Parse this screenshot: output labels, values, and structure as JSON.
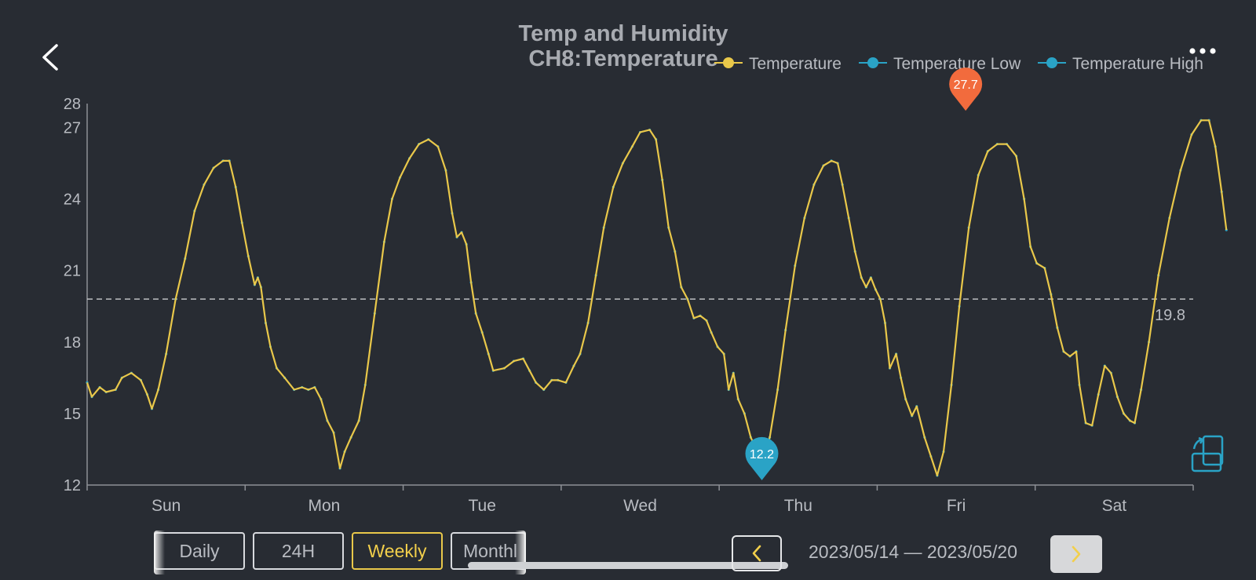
{
  "header": {
    "back_icon": "chevron-left-icon",
    "more_icon": "more-horizontal-icon",
    "title": "Temp and Humidity",
    "subtitle": "CH8:Temperature"
  },
  "legend": {
    "placement": "top-right",
    "items": [
      {
        "label": "Temperature",
        "color": "#e9c84a"
      },
      {
        "label": "Temperature Low",
        "color": "#2aa3c6"
      },
      {
        "label": "Temperature High",
        "color": "#2aa3c6"
      }
    ]
  },
  "chart_data": {
    "type": "line",
    "title": "Temp and Humidity",
    "subtitle": "CH8:Temperature",
    "xlabel": "",
    "ylabel": "",
    "ylim": [
      12,
      28
    ],
    "yticks": [
      12,
      15,
      18,
      21,
      24,
      27,
      28
    ],
    "categories": [
      "Sun",
      "Mon",
      "Tue",
      "Wed",
      "Thu",
      "Fri",
      "Sat"
    ],
    "xlim_days": [
      0,
      7
    ],
    "grid": false,
    "average_line": {
      "value": 19.8,
      "label": "19.8"
    },
    "max_marker": {
      "day": 5.56,
      "value": 27.7,
      "label": "27.7",
      "color": "#f26b3d"
    },
    "min_marker": {
      "day": 4.27,
      "value": 12.2,
      "label": "12.2",
      "color": "#2aa3c6"
    },
    "series": [
      {
        "name": "Temperature",
        "color": "#e9c84a",
        "points": [
          [
            0.0,
            16.3
          ],
          [
            0.03,
            15.7
          ],
          [
            0.08,
            16.1
          ],
          [
            0.12,
            15.9
          ],
          [
            0.18,
            16.0
          ],
          [
            0.22,
            16.5
          ],
          [
            0.28,
            16.7
          ],
          [
            0.34,
            16.4
          ],
          [
            0.38,
            15.8
          ],
          [
            0.41,
            15.2
          ],
          [
            0.45,
            16.0
          ],
          [
            0.5,
            17.5
          ],
          [
            0.56,
            19.8
          ],
          [
            0.62,
            21.5
          ],
          [
            0.68,
            23.5
          ],
          [
            0.74,
            24.6
          ],
          [
            0.8,
            25.3
          ],
          [
            0.86,
            25.6
          ],
          [
            0.9,
            25.6
          ],
          [
            0.94,
            24.5
          ],
          [
            0.98,
            23.0
          ],
          [
            1.02,
            21.6
          ],
          [
            1.06,
            20.4
          ],
          [
            1.08,
            20.7
          ],
          [
            1.1,
            20.3
          ],
          [
            1.13,
            18.8
          ],
          [
            1.16,
            17.8
          ],
          [
            1.2,
            16.9
          ],
          [
            1.25,
            16.5
          ],
          [
            1.31,
            16.0
          ],
          [
            1.36,
            16.1
          ],
          [
            1.4,
            16.0
          ],
          [
            1.44,
            16.1
          ],
          [
            1.48,
            15.6
          ],
          [
            1.52,
            14.7
          ],
          [
            1.56,
            14.2
          ],
          [
            1.6,
            12.7
          ],
          [
            1.63,
            13.4
          ],
          [
            1.67,
            14.0
          ],
          [
            1.72,
            14.7
          ],
          [
            1.76,
            16.2
          ],
          [
            1.82,
            19.2
          ],
          [
            1.88,
            22.2
          ],
          [
            1.93,
            24.0
          ],
          [
            1.98,
            24.9
          ],
          [
            2.04,
            25.7
          ],
          [
            2.1,
            26.3
          ],
          [
            2.16,
            26.5
          ],
          [
            2.22,
            26.2
          ],
          [
            2.27,
            25.2
          ],
          [
            2.31,
            23.4
          ],
          [
            2.34,
            22.4
          ],
          [
            2.37,
            22.6
          ],
          [
            2.4,
            22.1
          ],
          [
            2.43,
            20.5
          ],
          [
            2.46,
            19.2
          ],
          [
            2.5,
            18.4
          ],
          [
            2.54,
            17.5
          ],
          [
            2.57,
            16.8
          ],
          [
            2.64,
            16.9
          ],
          [
            2.7,
            17.2
          ],
          [
            2.76,
            17.3
          ],
          [
            2.8,
            16.8
          ],
          [
            2.84,
            16.3
          ],
          [
            2.89,
            16.0
          ],
          [
            2.94,
            16.4
          ],
          [
            2.98,
            16.4
          ],
          [
            3.03,
            16.3
          ],
          [
            3.08,
            17.0
          ],
          [
            3.12,
            17.5
          ],
          [
            3.17,
            18.8
          ],
          [
            3.22,
            20.8
          ],
          [
            3.27,
            22.8
          ],
          [
            3.33,
            24.5
          ],
          [
            3.39,
            25.5
          ],
          [
            3.45,
            26.2
          ],
          [
            3.5,
            26.8
          ],
          [
            3.56,
            26.9
          ],
          [
            3.6,
            26.5
          ],
          [
            3.64,
            24.8
          ],
          [
            3.68,
            22.8
          ],
          [
            3.72,
            21.8
          ],
          [
            3.76,
            20.3
          ],
          [
            3.8,
            19.8
          ],
          [
            3.84,
            19.0
          ],
          [
            3.88,
            19.1
          ],
          [
            3.92,
            18.9
          ],
          [
            3.95,
            18.4
          ],
          [
            3.99,
            17.8
          ],
          [
            4.03,
            17.5
          ],
          [
            4.06,
            16.0
          ],
          [
            4.09,
            16.7
          ],
          [
            4.12,
            15.6
          ],
          [
            4.16,
            15.0
          ],
          [
            4.2,
            14.0
          ],
          [
            4.25,
            13.3
          ],
          [
            4.28,
            13.1
          ],
          [
            4.32,
            14.0
          ],
          [
            4.37,
            16.0
          ],
          [
            4.42,
            18.5
          ],
          [
            4.48,
            21.2
          ],
          [
            4.54,
            23.2
          ],
          [
            4.6,
            24.6
          ],
          [
            4.66,
            25.4
          ],
          [
            4.71,
            25.6
          ],
          [
            4.75,
            25.5
          ],
          [
            4.78,
            24.6
          ],
          [
            4.82,
            23.2
          ],
          [
            4.86,
            21.8
          ],
          [
            4.9,
            20.7
          ],
          [
            4.93,
            20.3
          ],
          [
            4.96,
            20.7
          ],
          [
            4.99,
            20.2
          ],
          [
            5.02,
            19.8
          ],
          [
            5.05,
            18.8
          ],
          [
            5.08,
            16.9
          ],
          [
            5.12,
            17.5
          ],
          [
            5.15,
            16.5
          ],
          [
            5.18,
            15.6
          ],
          [
            5.22,
            14.9
          ],
          [
            5.25,
            15.3
          ],
          [
            5.3,
            14.0
          ],
          [
            5.34,
            13.2
          ],
          [
            5.38,
            12.4
          ],
          [
            5.42,
            13.4
          ],
          [
            5.47,
            16.2
          ],
          [
            5.52,
            19.5
          ],
          [
            5.58,
            22.8
          ],
          [
            5.64,
            25.0
          ],
          [
            5.7,
            26.0
          ],
          [
            5.76,
            26.3
          ],
          [
            5.82,
            26.3
          ],
          [
            5.88,
            25.8
          ],
          [
            5.93,
            24.0
          ],
          [
            5.97,
            22.0
          ],
          [
            6.01,
            21.3
          ],
          [
            6.06,
            21.1
          ],
          [
            6.1,
            20.0
          ],
          [
            6.14,
            18.6
          ],
          [
            6.18,
            17.6
          ],
          [
            6.22,
            17.4
          ],
          [
            6.26,
            17.6
          ],
          [
            6.28,
            16.2
          ],
          [
            6.32,
            14.6
          ],
          [
            6.36,
            14.5
          ],
          [
            6.4,
            15.8
          ],
          [
            6.44,
            17.0
          ],
          [
            6.48,
            16.7
          ],
          [
            6.52,
            15.7
          ],
          [
            6.56,
            15.0
          ],
          [
            6.6,
            14.7
          ],
          [
            6.63,
            14.6
          ],
          [
            6.67,
            16.0
          ],
          [
            6.72,
            18.0
          ],
          [
            6.78,
            20.8
          ],
          [
            6.85,
            23.2
          ],
          [
            6.92,
            25.2
          ],
          [
            6.99,
            26.7
          ],
          [
            7.05,
            27.3
          ],
          [
            7.1,
            27.3
          ],
          [
            7.14,
            26.2
          ],
          [
            7.18,
            24.3
          ],
          [
            7.21,
            22.7
          ]
        ]
      }
    ]
  },
  "chart_layout_hidden": true,
  "tabs": [
    {
      "label": "Daily",
      "active": false
    },
    {
      "label": "24H",
      "active": false
    },
    {
      "label": "Weekly",
      "active": true
    },
    {
      "label": "Monthl",
      "active": false
    }
  ],
  "date_nav": {
    "prev_icon": "chevron-left-icon",
    "range": "2023/05/14 — 2023/05/20",
    "next_icon": "chevron-right-icon"
  },
  "rotate_icon": "rotate-screen-icon"
}
